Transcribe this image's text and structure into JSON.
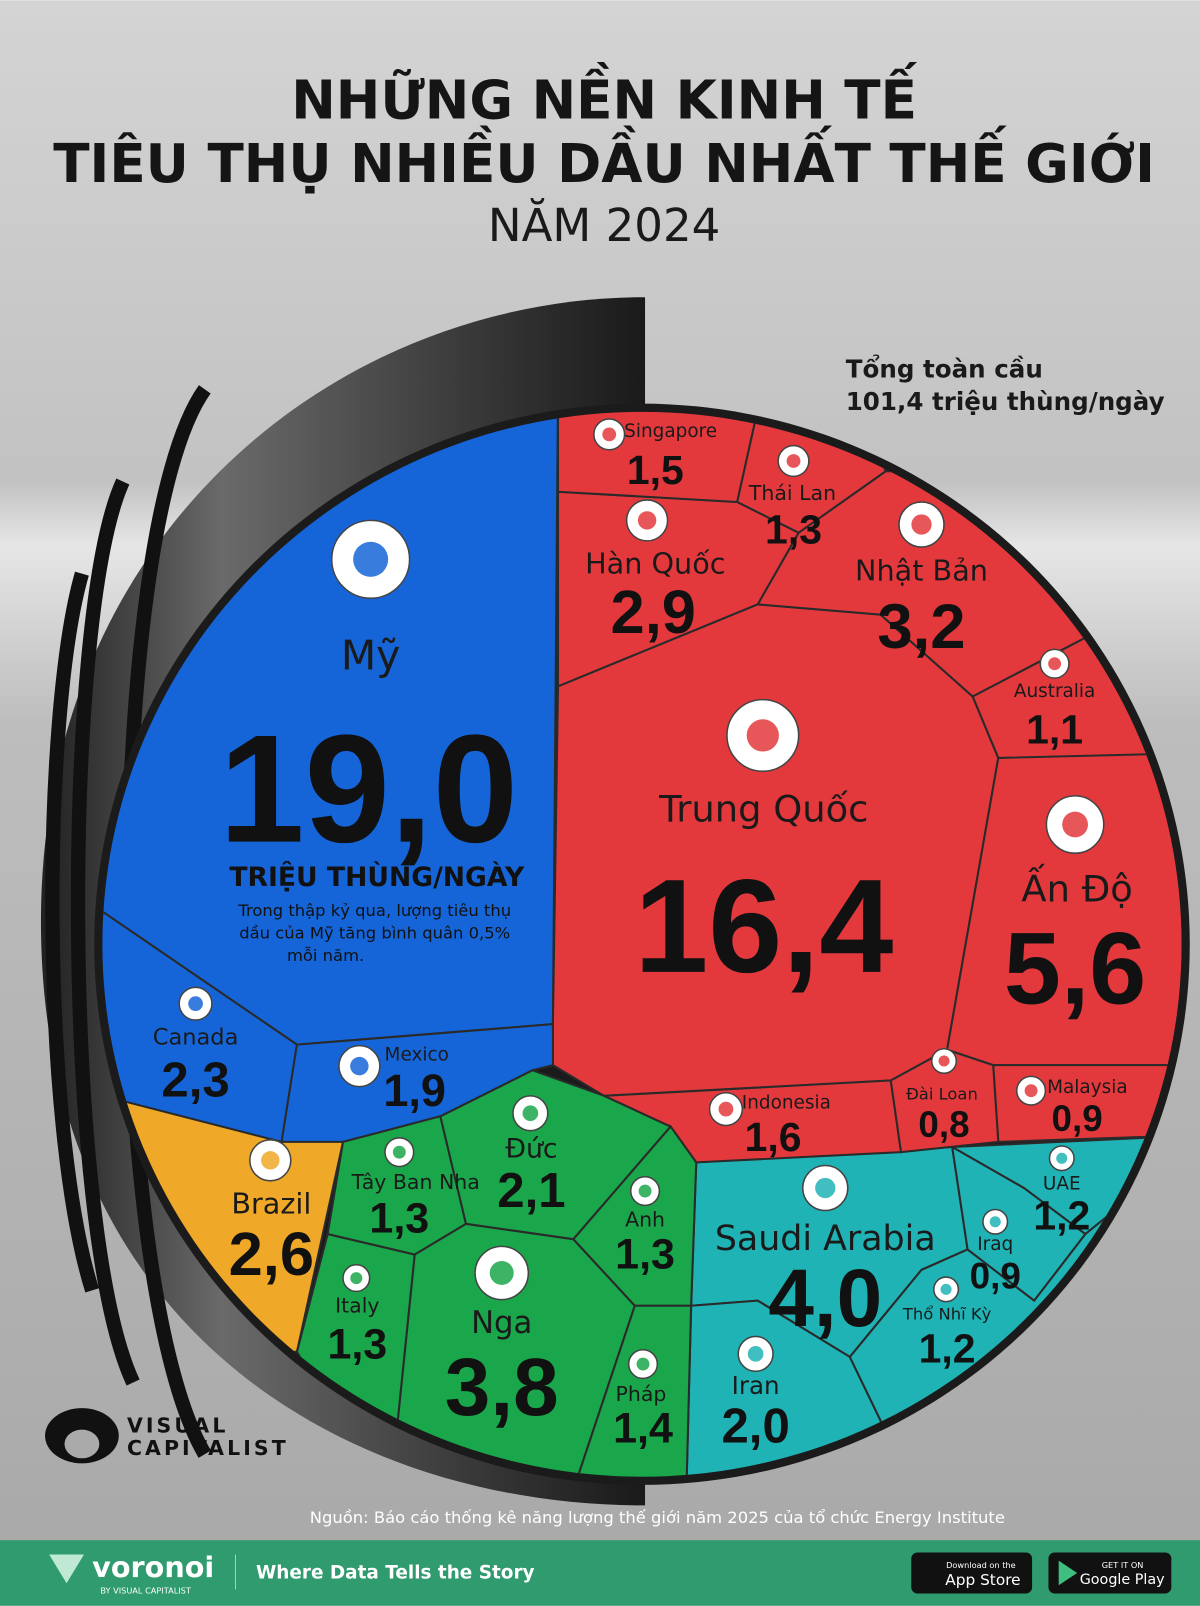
{
  "chart_data": {
    "type": "voronoi",
    "title": [
      "NHỮNG NỀN KINH TẾ",
      "TIÊU THỤ NHIỀU DẦU  NHẤT THẾ GIỚI"
    ],
    "subtitle": "NĂM 2024",
    "total_note": [
      "Tổng toàn cầu",
      "101,4 triệu thùng/ngày"
    ],
    "unit": "TRIỆU THÙNG/NGÀY",
    "note": [
      "Trong thập kỷ qua, lượng tiêu thụ",
      "dầu của Mỹ tăng bình quân 0,5%",
      "mỗi năm."
    ],
    "categories": [
      "Mỹ",
      "Trung Quốc",
      "Ấn Độ",
      "Saudi Arabia",
      "Nga",
      "Nhật Bản",
      "Hàn Quốc",
      "Brazil",
      "Canada",
      "Đức",
      "Iran",
      "Mexico",
      "Indonesia",
      "Singapore",
      "Thái Lan",
      "Anh",
      "Italy",
      "Tây Ban Nha",
      "Pháp",
      "UAE",
      "Thổ Nhĩ Kỳ",
      "Australia",
      "Iraq",
      "Malaysia",
      "Đài Loan"
    ],
    "values": [
      19.0,
      16.4,
      5.6,
      4.0,
      3.8,
      3.2,
      2.9,
      2.6,
      2.3,
      2.1,
      2.0,
      1.9,
      1.6,
      1.5,
      1.3,
      1.3,
      1.3,
      1.3,
      1.4,
      1.2,
      1.2,
      1.1,
      0.9,
      0.9,
      0.8
    ],
    "value_labels": [
      "19,0",
      "16,4",
      "5,6",
      "4,0",
      "3,8",
      "3,2",
      "2,9",
      "2,6",
      "2,3",
      "2,1",
      "2,0",
      "1,9",
      "1,6",
      "1,5",
      "1,3",
      "1,3",
      "1,3",
      "1,3",
      "1,4",
      "1,2",
      "1,2",
      "1,1",
      "0,9",
      "0,9",
      "0,8"
    ],
    "colors": [
      "#1565d8",
      "#e3393d",
      "#e3393d",
      "#1fb3b5",
      "#1aa64a",
      "#e3393d",
      "#e3393d",
      "#f0a828",
      "#1565d8",
      "#1aa64a",
      "#1fb3b5",
      "#1565d8",
      "#e3393d",
      "#e3393d",
      "#e3393d",
      "#1aa64a",
      "#1aa64a",
      "#1aa64a",
      "#1aa64a",
      "#1fb3b5",
      "#1fb3b5",
      "#e3393d",
      "#1fb3b5",
      "#e3393d",
      "#e3393d"
    ],
    "source": "Nguồn: Báo cáo thống kê năng lượng thế giới năm 2025 của tổ chức Energy Institute",
    "logo": [
      "VISUAL",
      "CAPITALIST"
    ],
    "footer": {
      "brand": "voronoi",
      "brand_sub": "BY VISUAL CAPITALIST",
      "tagline": "Where Data Tells the Story",
      "app_store": [
        "Download on the",
        "App Store"
      ],
      "google_play": [
        "GET IT ON",
        "Google Play"
      ]
    }
  }
}
